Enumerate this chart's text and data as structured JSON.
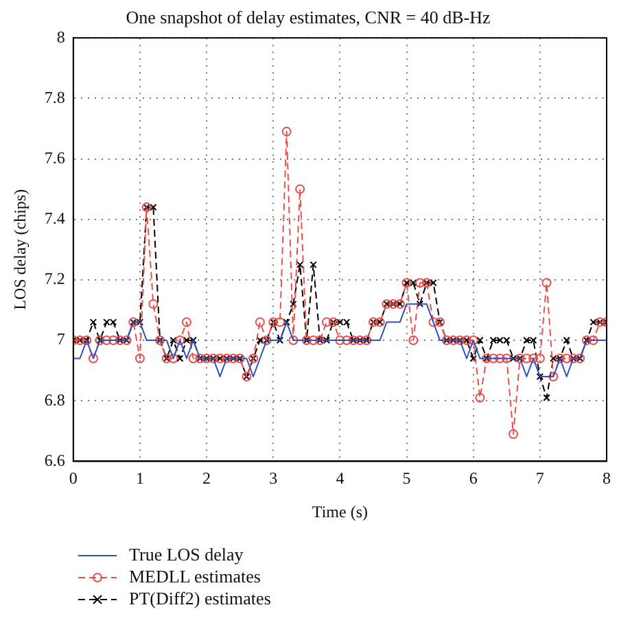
{
  "chart_data": {
    "type": "line",
    "title": "One snapshot of delay estimates, CNR = 40 dB-Hz",
    "xlabel": "Time (s)",
    "ylabel": "LOS delay (chips)",
    "x": [
      0,
      0.1,
      0.2,
      0.3,
      0.4,
      0.5,
      0.6,
      0.7,
      0.8,
      0.9,
      1,
      1.1,
      1.2,
      1.3,
      1.4,
      1.5,
      1.6,
      1.7,
      1.8,
      1.9,
      2,
      2.1,
      2.2,
      2.3,
      2.4,
      2.5,
      2.6,
      2.7,
      2.8,
      2.9,
      3,
      3.1,
      3.2,
      3.3,
      3.4,
      3.5,
      3.6,
      3.7,
      3.8,
      3.9,
      4,
      4.1,
      4.2,
      4.3,
      4.4,
      4.5,
      4.6,
      4.7,
      4.8,
      4.9,
      5,
      5.1,
      5.2,
      5.3,
      5.4,
      5.5,
      5.6,
      5.7,
      5.8,
      5.9,
      6,
      6.1,
      6.2,
      6.3,
      6.4,
      6.5,
      6.6,
      6.7,
      6.8,
      6.9,
      7,
      7.1,
      7.2,
      7.3,
      7.4,
      7.5,
      7.6,
      7.7,
      7.8,
      7.9,
      8
    ],
    "series": [
      {
        "name": "True LOS delay",
        "color": "#3050c0",
        "marker": "none",
        "line_style": "solid",
        "values": [
          6.94,
          6.94,
          7.0,
          6.94,
          7.0,
          7.0,
          7.0,
          7.0,
          7.0,
          7.06,
          7.06,
          7.0,
          7.0,
          7.0,
          7.0,
          6.94,
          7.0,
          6.94,
          7.0,
          6.94,
          6.94,
          6.94,
          6.88,
          6.94,
          6.94,
          6.94,
          6.94,
          6.88,
          6.94,
          7.0,
          7.0,
          7.0,
          7.06,
          7.0,
          7.0,
          7.0,
          7.0,
          7.0,
          7.0,
          7.0,
          7.0,
          7.0,
          7.0,
          7.0,
          7.0,
          7.0,
          7.0,
          7.06,
          7.06,
          7.06,
          7.12,
          7.12,
          7.12,
          7.12,
          7.06,
          7.0,
          7.0,
          7.0,
          7.0,
          6.94,
          7.0,
          6.94,
          6.94,
          6.94,
          6.94,
          6.94,
          6.94,
          6.94,
          6.88,
          6.94,
          6.88,
          6.88,
          6.88,
          6.94,
          6.88,
          6.94,
          6.94,
          7.0,
          7.0,
          7.0,
          7.0
        ]
      },
      {
        "name": "MEDLL estimates",
        "color": "#e8504a",
        "marker": "circle",
        "line_style": "dashed",
        "values": [
          7,
          7,
          7,
          6.94,
          7,
          7,
          7,
          7,
          7,
          7.06,
          6.94,
          7.44,
          7.12,
          7.0,
          6.94,
          6.94,
          7.0,
          7.06,
          6.94,
          6.94,
          6.94,
          6.94,
          6.94,
          6.94,
          6.94,
          6.94,
          6.88,
          6.94,
          7.06,
          7.0,
          7.06,
          7.06,
          7.69,
          7.0,
          7.5,
          7.0,
          7.0,
          7.0,
          7.06,
          7.06,
          7.0,
          7.0,
          7.0,
          7.0,
          7.0,
          7.06,
          7.06,
          7.12,
          7.12,
          7.12,
          7.19,
          7.0,
          7.19,
          7.19,
          7.06,
          7.06,
          7.0,
          7.0,
          7.0,
          7.0,
          7.0,
          6.81,
          6.94,
          6.94,
          6.94,
          6.94,
          6.69,
          6.94,
          6.94,
          6.94,
          6.94,
          7.19,
          6.88,
          6.94,
          6.94,
          6.94,
          6.94,
          7.0,
          7.0,
          7.06,
          7.06
        ]
      },
      {
        "name": "PT(Diff2) estimates",
        "color": "#000000",
        "marker": "cross",
        "line_style": "dashed",
        "values": [
          7,
          7,
          7,
          7.06,
          7,
          7.06,
          7.06,
          7,
          7,
          7.06,
          7.06,
          7.44,
          7.44,
          7.0,
          6.94,
          7.0,
          6.94,
          7.0,
          7.0,
          6.94,
          6.94,
          6.94,
          6.94,
          6.94,
          6.94,
          6.94,
          6.88,
          6.94,
          7.0,
          7.0,
          7.06,
          7.0,
          7.06,
          7.12,
          7.25,
          7.0,
          7.25,
          7.0,
          7.0,
          7.06,
          7.06,
          7.06,
          7.0,
          7.0,
          7.0,
          7.06,
          7.06,
          7.12,
          7.12,
          7.12,
          7.19,
          7.19,
          7.12,
          7.19,
          7.19,
          7.06,
          7.0,
          7.0,
          7.0,
          7.0,
          6.94,
          7.0,
          6.94,
          7.0,
          7.0,
          7.0,
          6.94,
          6.94,
          7.0,
          7.0,
          6.88,
          6.81,
          6.94,
          6.94,
          7.0,
          6.94,
          6.94,
          7.0,
          7.06,
          7.06,
          7.06
        ]
      }
    ],
    "xlim": [
      0,
      8
    ],
    "xticks": [
      0,
      1,
      2,
      3,
      4,
      5,
      6,
      7,
      8
    ],
    "ylim": [
      6.6,
      8
    ],
    "yticks": [
      6.6,
      6.8,
      7,
      7.2,
      7.4,
      7.6,
      7.8,
      8
    ],
    "grid": true,
    "legend": "bottom"
  }
}
